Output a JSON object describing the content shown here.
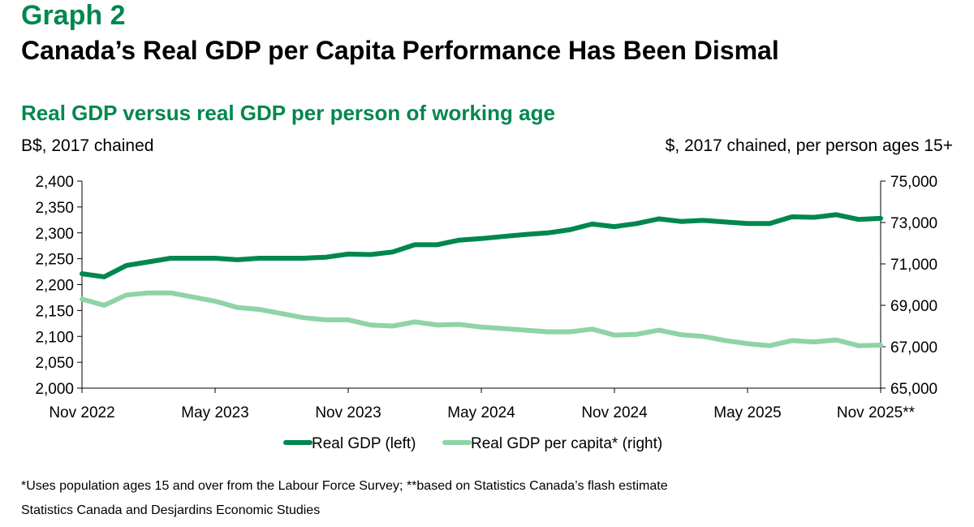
{
  "header": {
    "graph_label": "Graph 2",
    "title": "Canada’s Real GDP per Capita Performance Has Been Dismal",
    "subtitle": "Real GDP versus real GDP per person of working age",
    "unit_left": "B$, 2017 chained",
    "unit_right": "$, 2017 chained, per person ages 15+"
  },
  "footer": {
    "footnote": "*Uses population ages 15 and over from the Labour Force Survey; **based on Statistics Canada’s flash estimate",
    "source": "Statistics Canada and Desjardins Economic Studies"
  },
  "colors": {
    "brand": "#00874e",
    "series_dark": "#00874e",
    "series_light": "#8fd3a8"
  },
  "chart_data": {
    "type": "line",
    "x": [
      "Nov 2022",
      "Dec 2022",
      "Jan 2023",
      "Feb 2023",
      "Mar 2023",
      "Apr 2023",
      "May 2023",
      "Jun 2023",
      "Jul 2023",
      "Aug 2023",
      "Sep 2023",
      "Oct 2023",
      "Nov 2023",
      "Dec 2023",
      "Jan 2024",
      "Feb 2024",
      "Mar 2024",
      "Apr 2024",
      "May 2024",
      "Jun 2024",
      "Jul 2024",
      "Aug 2024",
      "Sep 2024",
      "Oct 2024",
      "Nov 2024",
      "Dec 2024",
      "Jan 2025",
      "Feb 2025",
      "Mar 2025",
      "Apr 2025",
      "May 2025",
      "Jun 2025",
      "Jul 2025",
      "Aug 2025",
      "Sep 2025",
      "Oct 2025",
      "Nov 2025"
    ],
    "x_tick_labels": [
      "Nov 2022",
      "May 2023",
      "Nov 2023",
      "May 2024",
      "Nov 2024",
      "May 2025",
      "Nov 2025**"
    ],
    "x_tick_indices": [
      0,
      6,
      12,
      18,
      24,
      30,
      36
    ],
    "series": [
      {
        "name": "Real GDP (left)",
        "axis": "left",
        "color": "#00874e",
        "values": [
          2221,
          2215,
          2237,
          2244,
          2251,
          2251,
          2251,
          2248,
          2251,
          2251,
          2251,
          2253,
          2259,
          2258,
          2263,
          2277,
          2277,
          2286,
          2289,
          2293,
          2297,
          2300,
          2306,
          2317,
          2312,
          2318,
          2327,
          2322,
          2324,
          2321,
          2318,
          2318,
          2331,
          2330,
          2335,
          2326,
          2328
        ]
      },
      {
        "name": "Real GDP per capita* (right)",
        "axis": "right",
        "color": "#8fd3a8",
        "values": [
          69300,
          69000,
          69500,
          69600,
          69600,
          69400,
          69200,
          68900,
          68800,
          68600,
          68400,
          68300,
          68300,
          68050,
          68000,
          68200,
          68050,
          68080,
          67950,
          67880,
          67800,
          67720,
          67720,
          67850,
          67560,
          67600,
          67800,
          67580,
          67500,
          67300,
          67150,
          67050,
          67300,
          67230,
          67330,
          67050,
          67080
        ]
      }
    ],
    "left_axis": {
      "ylim": [
        2000,
        2400
      ],
      "ticks": [
        2000,
        2050,
        2100,
        2150,
        2200,
        2250,
        2300,
        2350,
        2400
      ]
    },
    "right_axis": {
      "ylim": [
        65000,
        75000
      ],
      "ticks": [
        65000,
        67000,
        69000,
        71000,
        73000,
        75000
      ]
    },
    "grid": false,
    "legend_position": "bottom-center"
  }
}
